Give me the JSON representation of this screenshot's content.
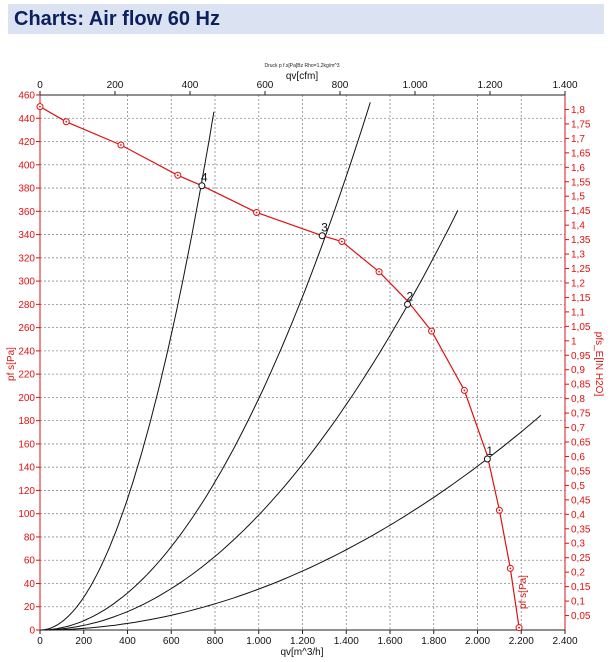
{
  "page": {
    "title": "Charts: Air flow 60 Hz"
  },
  "chart_data": {
    "type": "line",
    "subtitle": "Druck p f.s[Pa]Bz Rho=1,2kg/m^3",
    "xlabel": "qv[m^3/h]",
    "x2label": "qv[cfm]",
    "ylabel": "pf s[Pa]",
    "y2label": "pfs_E[IN H2O]",
    "curve_label": "pf s[Pa]",
    "xlim": [
      0,
      2400
    ],
    "ylim": [
      0,
      460
    ],
    "x2lim": [
      0,
      1400
    ],
    "y2lim": [
      0,
      1.85
    ],
    "x_ticks": [
      0,
      200,
      400,
      600,
      800,
      1000,
      1200,
      1400,
      1600,
      1800,
      2000,
      2200,
      2400
    ],
    "x_tick_labels": [
      "0",
      "200",
      "400",
      "600",
      "800",
      "1.000",
      "1.200",
      "1.400",
      "1.600",
      "1.800",
      "2.000",
      "2.200",
      "2.400"
    ],
    "x2_ticks": [
      0,
      200,
      400,
      600,
      800,
      1000,
      1200,
      1400
    ],
    "x2_tick_labels": [
      "0",
      "200",
      "400",
      "600",
      "800",
      "1.000",
      "1.200",
      "1.400"
    ],
    "y_ticks": [
      0,
      20,
      40,
      60,
      80,
      100,
      120,
      140,
      160,
      180,
      200,
      220,
      240,
      260,
      280,
      300,
      320,
      340,
      360,
      380,
      400,
      420,
      440,
      460
    ],
    "y2_ticks": [
      0.05,
      0.1,
      0.15,
      0.2,
      0.25,
      0.3,
      0.35,
      0.4,
      0.45,
      0.5,
      0.55,
      0.6,
      0.65,
      0.7,
      0.75,
      0.8,
      0.85,
      0.9,
      0.95,
      1.0,
      1.05,
      1.1,
      1.15,
      1.2,
      1.25,
      1.3,
      1.35,
      1.4,
      1.45,
      1.5,
      1.55,
      1.6,
      1.65,
      1.7,
      1.75,
      1.8
    ],
    "y2_tick_labels": [
      "0,05",
      "0,1",
      "0,15",
      "0,2",
      "0,25",
      "0,3",
      "0,35",
      "0,4",
      "0,45",
      "0,5",
      "0,55",
      "0,6",
      "0,65",
      "0,7",
      "0,75",
      "0,8",
      "0,85",
      "0,9",
      "0,95",
      "1",
      "1,05",
      "1,1",
      "1,15",
      "1,2",
      "1,25",
      "1,3",
      "1,35",
      "1,4",
      "1,45",
      "1,5",
      "1,55",
      "1,6",
      "1,65",
      "1,7",
      "1,75",
      "1,8"
    ],
    "fan_curve": {
      "name": "pf s[Pa]",
      "color": "#e01010",
      "points": [
        [
          0,
          450
        ],
        [
          120,
          437
        ],
        [
          370,
          417
        ],
        [
          630,
          391
        ],
        [
          740,
          382
        ],
        [
          990,
          359
        ],
        [
          1290,
          339
        ],
        [
          1380,
          334
        ],
        [
          1550,
          308
        ],
        [
          1680,
          283
        ],
        [
          1790,
          257
        ],
        [
          1940,
          206
        ],
        [
          2045,
          150
        ],
        [
          2100,
          103
        ],
        [
          2150,
          53
        ],
        [
          2190,
          2
        ]
      ],
      "markers": [
        [
          0,
          450
        ],
        [
          120,
          437
        ],
        [
          370,
          417
        ],
        [
          630,
          391
        ],
        [
          990,
          359
        ],
        [
          1380,
          334
        ],
        [
          1550,
          308
        ],
        [
          1790,
          257
        ],
        [
          1940,
          206
        ],
        [
          2100,
          103
        ],
        [
          2150,
          53
        ],
        [
          2190,
          2
        ]
      ]
    },
    "system_curves": [
      {
        "name": "1",
        "k": 3.52e-05,
        "xmax": 2290
      },
      {
        "name": "2",
        "k": 9.89e-05,
        "xmax": 1910
      },
      {
        "name": "3",
        "k": 0.000199,
        "xmax": 1510
      },
      {
        "name": "4",
        "k": 0.000705,
        "xmax": 795
      }
    ],
    "operating_points": [
      {
        "label": "1",
        "x": 2045,
        "y": 147
      },
      {
        "label": "2",
        "x": 1680,
        "y": 280
      },
      {
        "label": "3",
        "x": 1290,
        "y": 339
      },
      {
        "label": "4",
        "x": 740,
        "y": 382
      }
    ]
  }
}
